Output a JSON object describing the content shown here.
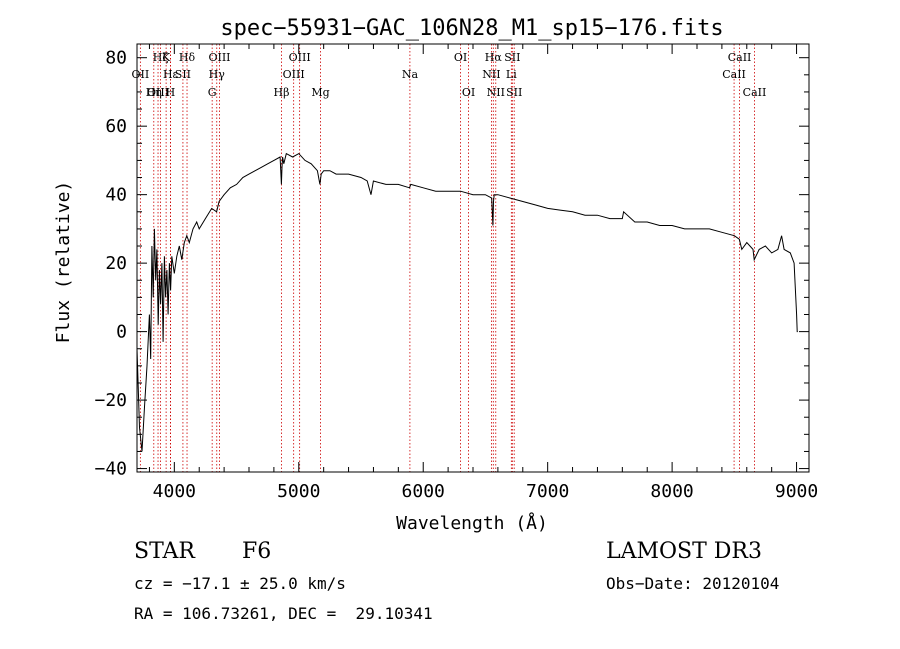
{
  "chart_data": {
    "type": "line",
    "title": "spec−55931−GAC_106N28_M1_sp15−176.fits",
    "xlabel": "Wavelength (Å)",
    "ylabel": "Flux (relative)",
    "xlim": [
      3700,
      9100
    ],
    "ylim": [
      -41,
      84
    ],
    "xticks": [
      4000,
      5000,
      6000,
      7000,
      8000,
      9000
    ],
    "xtick_labels": [
      "4000",
      "5000",
      "6000",
      "7000",
      "8000",
      "9000"
    ],
    "yticks": [
      -40,
      -20,
      0,
      20,
      40,
      60,
      80
    ],
    "ytick_labels": [
      "−40",
      "−20",
      "0",
      "20",
      "40",
      "60",
      "80"
    ],
    "grid": false,
    "series": [
      {
        "name": "flux",
        "x": [
          3700,
          3720,
          3740,
          3760,
          3780,
          3800,
          3810,
          3820,
          3830,
          3840,
          3850,
          3860,
          3870,
          3880,
          3890,
          3900,
          3910,
          3920,
          3930,
          3940,
          3950,
          3960,
          3970,
          3980,
          4000,
          4020,
          4040,
          4060,
          4080,
          4100,
          4120,
          4150,
          4180,
          4200,
          4250,
          4300,
          4340,
          4360,
          4400,
          4450,
          4500,
          4550,
          4600,
          4650,
          4700,
          4750,
          4800,
          4850,
          4860,
          4865,
          4870,
          4880,
          4900,
          4950,
          5000,
          5050,
          5100,
          5150,
          5170,
          5180,
          5200,
          5250,
          5300,
          5400,
          5500,
          5550,
          5580,
          5600,
          5700,
          5800,
          5890,
          5900,
          6000,
          6100,
          6200,
          6300,
          6400,
          6500,
          6550,
          6560,
          6565,
          6570,
          6600,
          6700,
          6800,
          6900,
          7000,
          7100,
          7200,
          7300,
          7400,
          7500,
          7600,
          7610,
          7700,
          7800,
          7900,
          8000,
          8100,
          8200,
          8300,
          8400,
          8500,
          8540,
          8560,
          8600,
          8650,
          8660,
          8700,
          8750,
          8800,
          8850,
          8880,
          8900,
          8950,
          8980,
          9000,
          9005,
          9010
        ],
        "y": [
          -5,
          -28,
          -35,
          -22,
          -10,
          5,
          -8,
          25,
          10,
          30,
          15,
          24,
          2,
          18,
          8,
          20,
          -3,
          22,
          10,
          18,
          5,
          20,
          12,
          22,
          17,
          22,
          25,
          21,
          26,
          28,
          26,
          30,
          32,
          30,
          33,
          36,
          35,
          38,
          40,
          42,
          43,
          45,
          46,
          47,
          48,
          49,
          50,
          51,
          43,
          48,
          51,
          49,
          52,
          51,
          52,
          50,
          49,
          47,
          43,
          46,
          47,
          47,
          46,
          46,
          45,
          44,
          40,
          44,
          43,
          43,
          42,
          43,
          42,
          41,
          41,
          41,
          40,
          40,
          39,
          31,
          38,
          40,
          40,
          39,
          38,
          37,
          36,
          35.5,
          35,
          34,
          34,
          33,
          33,
          35,
          32,
          32,
          31,
          31,
          30,
          30,
          30,
          29,
          28,
          27,
          24,
          26,
          24,
          21,
          24,
          25,
          23,
          24,
          28,
          24,
          23,
          20,
          5,
          0,
          0
        ]
      }
    ],
    "annotations": [
      {
        "label": "Hζ",
        "x": 3889,
        "row": 1
      },
      {
        "label": "OII",
        "x": 3727,
        "row": 2
      },
      {
        "label": "OIII",
        "x": 3869,
        "row": 3
      },
      {
        "label": "K",
        "x": 3934,
        "row": 1
      },
      {
        "label": "Hε",
        "x": 3970,
        "row": 2
      },
      {
        "label": "Hη",
        "x": 3835,
        "row": 3
      },
      {
        "label": "Hδ",
        "x": 4102,
        "row": 1
      },
      {
        "label": "SII",
        "x": 4069,
        "row": 2
      },
      {
        "label": "H",
        "x": 3969,
        "row": 3
      },
      {
        "label": "OIII",
        "x": 4363,
        "row": 1
      },
      {
        "label": "Hγ",
        "x": 4341,
        "row": 2
      },
      {
        "label": "G",
        "x": 4304,
        "row": 3
      },
      {
        "label": "OIII",
        "x": 5007,
        "row": 1
      },
      {
        "label": "OIII",
        "x": 4959,
        "row": 2
      },
      {
        "label": "Hβ",
        "x": 4861,
        "row": 3
      },
      {
        "label": "Mg",
        "x": 5175,
        "row": 3
      },
      {
        "label": "Na",
        "x": 5893,
        "row": 2
      },
      {
        "label": "OI",
        "x": 6300,
        "row": 1
      },
      {
        "label": "OI",
        "x": 6364,
        "row": 3
      },
      {
        "label": "Hα",
        "x": 6563,
        "row": 1
      },
      {
        "label": "SII",
        "x": 6716,
        "row": 1
      },
      {
        "label": "NII",
        "x": 6548,
        "row": 2
      },
      {
        "label": "Li",
        "x": 6708,
        "row": 2
      },
      {
        "label": "NII",
        "x": 6583,
        "row": 3
      },
      {
        "label": "SII",
        "x": 6731,
        "row": 3
      },
      {
        "label": "CaII",
        "x": 8542,
        "row": 1
      },
      {
        "label": "CaII",
        "x": 8498,
        "row": 2
      },
      {
        "label": "CaII",
        "x": 8662,
        "row": 3
      }
    ]
  },
  "footer": {
    "object_class": "STAR",
    "subclass": "F6",
    "survey": "LAMOST DR3",
    "cz": "cz = −17.1 ± 25.0 km/s",
    "obs_date": "Obs−Date: 20120104",
    "coords": "RA = 106.73261, DEC =  29.10341"
  },
  "colors": {
    "line": "#000000",
    "marker": "#cc0000"
  }
}
